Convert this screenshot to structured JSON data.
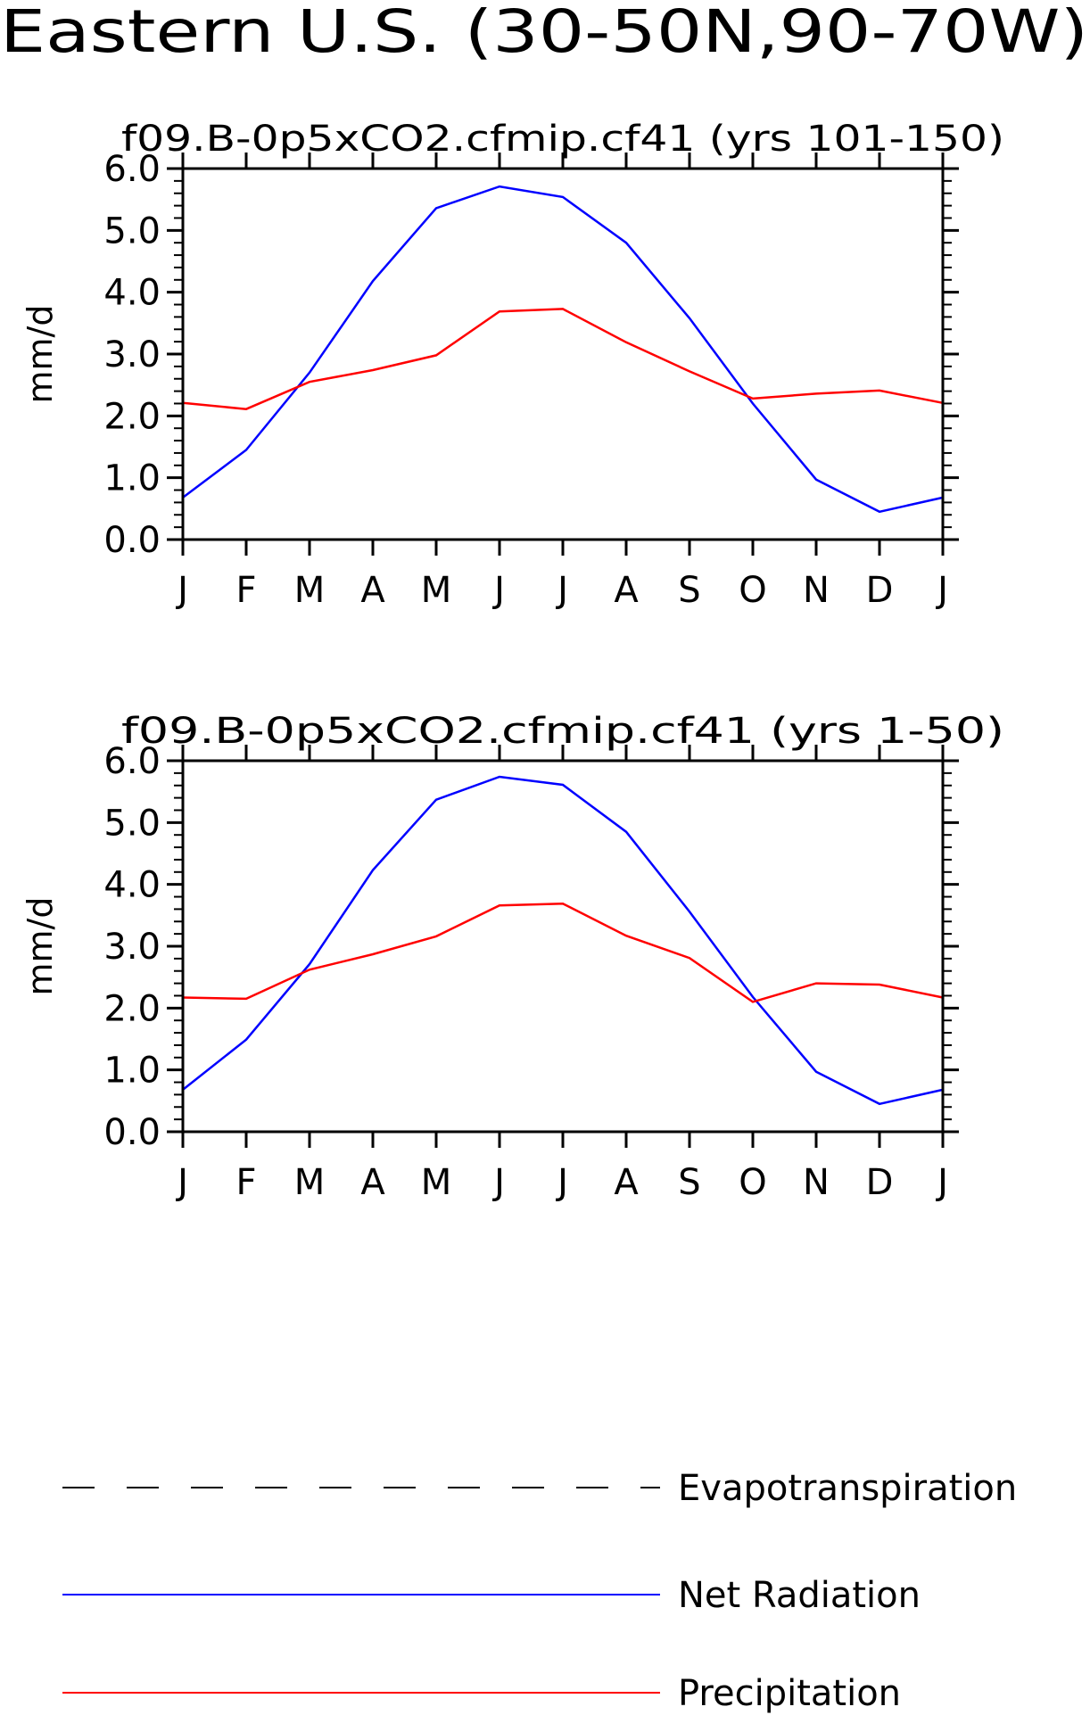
{
  "figure": {
    "title": "Eastern U.S. (30-50N,90-70W)"
  },
  "legend": {
    "placement": "bottom",
    "items": [
      {
        "label": "Evapotranspiration",
        "color": "#000000",
        "style": "dashed"
      },
      {
        "label": "Net Radiation",
        "color": "#0000ff",
        "style": "solid"
      },
      {
        "label": "Precipitation",
        "color": "#ff0000",
        "style": "solid"
      }
    ]
  },
  "chart_data": [
    {
      "type": "line",
      "title": "f09.B-0p5xCO2.cfmip.cf41 (yrs 101-150)",
      "xlabel": "",
      "ylabel": "mm/d",
      "ylim": [
        0,
        6
      ],
      "yticks": [
        "0.0",
        "1.0",
        "2.0",
        "3.0",
        "4.0",
        "5.0",
        "6.0"
      ],
      "categories": [
        "J",
        "F",
        "M",
        "A",
        "M",
        "J",
        "J",
        "A",
        "S",
        "O",
        "N",
        "D",
        "J"
      ],
      "grid": false,
      "series": [
        {
          "name": "Net Radiation",
          "color": "#0000ff",
          "values": [
            0.68,
            1.45,
            2.7,
            4.18,
            5.36,
            5.71,
            5.54,
            4.8,
            3.58,
            2.2,
            0.97,
            0.45,
            0.68
          ]
        },
        {
          "name": "Precipitation",
          "color": "#ff0000",
          "values": [
            2.21,
            2.11,
            2.55,
            2.74,
            2.98,
            3.69,
            3.73,
            3.19,
            2.72,
            2.28,
            2.36,
            2.41,
            2.21
          ]
        }
      ]
    },
    {
      "type": "line",
      "title": "f09.B-0p5xCO2.cfmip.cf41 (yrs 1-50)",
      "xlabel": "",
      "ylabel": "mm/d",
      "ylim": [
        0,
        6
      ],
      "yticks": [
        "0.0",
        "1.0",
        "2.0",
        "3.0",
        "4.0",
        "5.0",
        "6.0"
      ],
      "categories": [
        "J",
        "F",
        "M",
        "A",
        "M",
        "J",
        "J",
        "A",
        "S",
        "O",
        "N",
        "D",
        "J"
      ],
      "grid": false,
      "series": [
        {
          "name": "Net Radiation",
          "color": "#0000ff",
          "values": [
            0.68,
            1.49,
            2.71,
            4.23,
            5.37,
            5.74,
            5.61,
            4.85,
            3.56,
            2.18,
            0.97,
            0.45,
            0.68
          ]
        },
        {
          "name": "Precipitation",
          "color": "#ff0000",
          "values": [
            2.17,
            2.15,
            2.62,
            2.87,
            3.16,
            3.66,
            3.69,
            3.17,
            2.81,
            2.1,
            2.4,
            2.38,
            2.17
          ]
        }
      ]
    }
  ]
}
